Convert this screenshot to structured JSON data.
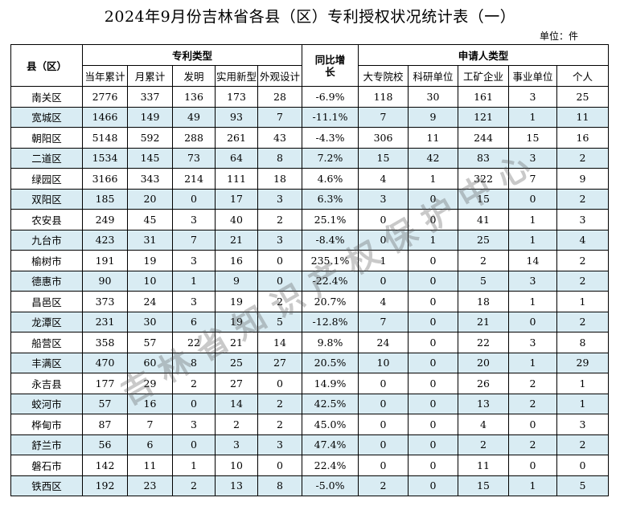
{
  "title": "2024年9月份吉林省各县（区）专利授权状况统计表（一）",
  "unit": "单位：件",
  "headers": {
    "county": "县（区）",
    "patent_type": "专利类型",
    "yoy": "同比增长",
    "applicant_type": "申请人类型",
    "sub": [
      "当年累计",
      "月累计",
      "发明",
      "实用新型",
      "外观设计",
      "大专院校",
      "科研单位",
      "工矿企业",
      "事业单位",
      "个人"
    ]
  },
  "rows": [
    {
      "name": "南关区",
      "cum": "2776",
      "month": "337",
      "inv": "136",
      "util": "173",
      "design": "28",
      "yoy": "-6.9%",
      "uni": "118",
      "res": "30",
      "ind": "161",
      "inst": "3",
      "ind_p": "25"
    },
    {
      "name": "宽城区",
      "cum": "1466",
      "month": "149",
      "inv": "49",
      "util": "93",
      "design": "7",
      "yoy": "-11.1%",
      "uni": "7",
      "res": "9",
      "ind": "121",
      "inst": "1",
      "ind_p": "11"
    },
    {
      "name": "朝阳区",
      "cum": "5148",
      "month": "592",
      "inv": "288",
      "util": "261",
      "design": "43",
      "yoy": "-4.3%",
      "uni": "306",
      "res": "11",
      "ind": "244",
      "inst": "15",
      "ind_p": "16"
    },
    {
      "name": "二道区",
      "cum": "1534",
      "month": "145",
      "inv": "73",
      "util": "64",
      "design": "8",
      "yoy": "7.2%",
      "uni": "15",
      "res": "42",
      "ind": "83",
      "inst": "3",
      "ind_p": "2"
    },
    {
      "name": "绿园区",
      "cum": "3166",
      "month": "343",
      "inv": "214",
      "util": "111",
      "design": "18",
      "yoy": "4.6%",
      "uni": "4",
      "res": "1",
      "ind": "322",
      "inst": "7",
      "ind_p": "9"
    },
    {
      "name": "双阳区",
      "cum": "185",
      "month": "20",
      "inv": "0",
      "util": "17",
      "design": "3",
      "yoy": "6.3%",
      "uni": "3",
      "res": "0",
      "ind": "15",
      "inst": "0",
      "ind_p": "2"
    },
    {
      "name": "农安县",
      "cum": "249",
      "month": "45",
      "inv": "3",
      "util": "40",
      "design": "2",
      "yoy": "25.1%",
      "uni": "0",
      "res": "0",
      "ind": "41",
      "inst": "1",
      "ind_p": "3"
    },
    {
      "name": "九台市",
      "cum": "423",
      "month": "31",
      "inv": "7",
      "util": "21",
      "design": "3",
      "yoy": "-8.4%",
      "uni": "0",
      "res": "1",
      "ind": "25",
      "inst": "1",
      "ind_p": "4"
    },
    {
      "name": "榆树市",
      "cum": "191",
      "month": "19",
      "inv": "3",
      "util": "16",
      "design": "0",
      "yoy": "235.1%",
      "uni": "1",
      "res": "0",
      "ind": "2",
      "inst": "14",
      "ind_p": "2"
    },
    {
      "name": "德惠市",
      "cum": "90",
      "month": "10",
      "inv": "1",
      "util": "9",
      "design": "0",
      "yoy": "-22.4%",
      "uni": "0",
      "res": "0",
      "ind": "5",
      "inst": "3",
      "ind_p": "2"
    },
    {
      "name": "昌邑区",
      "cum": "373",
      "month": "24",
      "inv": "3",
      "util": "19",
      "design": "2",
      "yoy": "20.7%",
      "uni": "4",
      "res": "0",
      "ind": "18",
      "inst": "1",
      "ind_p": "1"
    },
    {
      "name": "龙潭区",
      "cum": "231",
      "month": "30",
      "inv": "6",
      "util": "19",
      "design": "5",
      "yoy": "-12.8%",
      "uni": "7",
      "res": "0",
      "ind": "21",
      "inst": "0",
      "ind_p": "2"
    },
    {
      "name": "船营区",
      "cum": "358",
      "month": "57",
      "inv": "22",
      "util": "21",
      "design": "14",
      "yoy": "9.8%",
      "uni": "24",
      "res": "0",
      "ind": "22",
      "inst": "3",
      "ind_p": "8"
    },
    {
      "name": "丰满区",
      "cum": "470",
      "month": "60",
      "inv": "8",
      "util": "25",
      "design": "27",
      "yoy": "20.5%",
      "uni": "10",
      "res": "0",
      "ind": "20",
      "inst": "1",
      "ind_p": "29"
    },
    {
      "name": "永吉县",
      "cum": "177",
      "month": "29",
      "inv": "2",
      "util": "27",
      "design": "0",
      "yoy": "14.9%",
      "uni": "0",
      "res": "0",
      "ind": "26",
      "inst": "2",
      "ind_p": "1"
    },
    {
      "name": "蛟河市",
      "cum": "57",
      "month": "16",
      "inv": "0",
      "util": "14",
      "design": "2",
      "yoy": "42.5%",
      "uni": "0",
      "res": "0",
      "ind": "13",
      "inst": "2",
      "ind_p": "1"
    },
    {
      "name": "桦甸市",
      "cum": "87",
      "month": "7",
      "inv": "3",
      "util": "2",
      "design": "2",
      "yoy": "45.0%",
      "uni": "0",
      "res": "0",
      "ind": "4",
      "inst": "0",
      "ind_p": "3"
    },
    {
      "name": "舒兰市",
      "cum": "56",
      "month": "6",
      "inv": "0",
      "util": "3",
      "design": "3",
      "yoy": "47.4%",
      "uni": "0",
      "res": "0",
      "ind": "2",
      "inst": "2",
      "ind_p": "2"
    },
    {
      "name": "磐石市",
      "cum": "142",
      "month": "11",
      "inv": "1",
      "util": "10",
      "design": "0",
      "yoy": "22.4%",
      "uni": "0",
      "res": "0",
      "ind": "11",
      "inst": "0",
      "ind_p": "0"
    },
    {
      "name": "铁西区",
      "cum": "192",
      "month": "23",
      "inv": "2",
      "util": "13",
      "design": "8",
      "yoy": "-5.0%",
      "uni": "2",
      "res": "0",
      "ind": "15",
      "inst": "1",
      "ind_p": "5"
    }
  ],
  "watermark": "吉林省知识产权保护中心"
}
